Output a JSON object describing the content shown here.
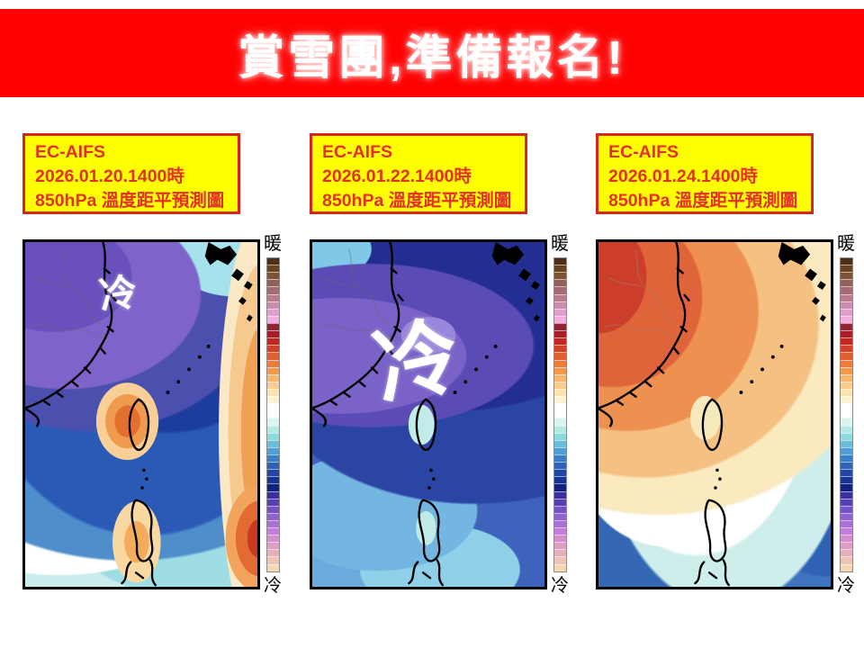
{
  "banner": {
    "title": "賞雪團,準備報名!"
  },
  "panels": [
    {
      "label_lines": [
        "EC-AIFS",
        "2026.01.20.1400時",
        "850hPa 溫度距平預測圖"
      ],
      "map_annotation": "冷",
      "colorbar_top_label": "暖",
      "colorbar_bottom_label": "冷"
    },
    {
      "label_lines": [
        "EC-AIFS",
        "2026.01.22.1400時",
        "850hPa 溫度距平預測圖"
      ],
      "map_annotation": "冷",
      "colorbar_top_label": "暖",
      "colorbar_bottom_label": "冷"
    },
    {
      "label_lines": [
        "EC-AIFS",
        "2026.01.24.1400時",
        "850hPa 溫度距平預測圖"
      ],
      "map_annotation": "",
      "colorbar_top_label": "暖",
      "colorbar_bottom_label": "冷"
    }
  ],
  "colors": {
    "banner_bg": "#fe0000",
    "banner_text": "#ffffff",
    "label_bg": "#ffff00",
    "label_text": "#e43028",
    "label_border": "#d6251c",
    "map_border": "#000000",
    "annotation_text": "#ffffff"
  },
  "colorbar_colors": [
    "#4f2f17",
    "#684321",
    "#7d5433",
    "#92605a",
    "#a56b74",
    "#b87b92",
    "#cc8eb0",
    "#e19fcb",
    "#f1aede",
    "#8f2437",
    "#a81f27",
    "#c42722",
    "#d4402a",
    "#e05f30",
    "#eb7c3b",
    "#f2994e",
    "#f7b56e",
    "#facd8f",
    "#fce2ad",
    "#fdf2cf",
    "#ffffff",
    "#ffffff",
    "#daf4ee",
    "#b4e9e5",
    "#8ed9dd",
    "#6bbddc",
    "#4f9fd2",
    "#3a7fc5",
    "#2d62b4",
    "#2247a2",
    "#183391",
    "#11227e",
    "#39309d",
    "#5541b1",
    "#7252c5",
    "#8e62d3",
    "#a870da",
    "#c17eda",
    "#d38ed0",
    "#de9ec2",
    "#e7afbb",
    "#efc2b6",
    "#f6d7b4"
  ]
}
